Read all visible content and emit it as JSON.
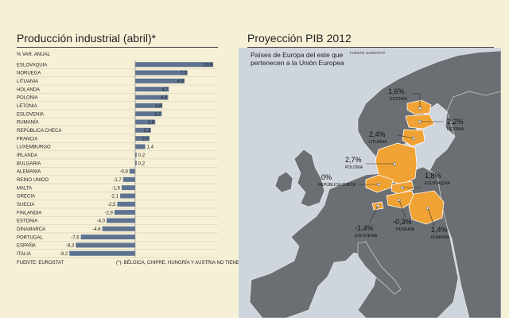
{
  "left": {
    "title": "Producción industrial (abril)*",
    "unit": "% VAR. ANUAL",
    "source": "FUENTE: EUROSTAT",
    "footnote": "(*): BÉLGICA, CHIPRE, HUNGRÍA Y AUSTRIA NO TIENEN DATOS DISPONIBLES"
  },
  "right": {
    "title": "Proyección PIB 2012",
    "subtitle": "Países de Europa del este que pertenecen a la Unión Europea",
    "source": "FUENTE: EUROSTAT"
  },
  "colors": {
    "background": "#f6f0d6",
    "bar": "#5e7392",
    "sea": "#cfd5dc",
    "land": "#6b6e72",
    "highlight": "#f0a334"
  },
  "chart_data": [
    {
      "type": "bar",
      "orientation": "horizontal",
      "title": "Producción industrial (abril)*",
      "xlabel": "% VAR. ANUAL",
      "categories": [
        "ESLOVAQUIA",
        "NORUEGA",
        "LITUANIA",
        "HOLANDA",
        "POLONIA",
        "LETONIA",
        "ESLOVENIA",
        "RUMANÍA",
        "REPÚBLICA CHECA",
        "FRANCIA",
        "LUXEMBURGO",
        "IRLANDA",
        "BULGARIA",
        "ALEMANIA",
        "REINO UNIDO",
        "MALTA",
        "GRECIA",
        "SUECIA",
        "FINLANDIA",
        "ESTONIA",
        "DINAMARCA",
        "PORTUGAL",
        "ESPAÑA",
        "ITALIA"
      ],
      "values": [
        10.9,
        7.3,
        6.9,
        4.7,
        4.6,
        3.8,
        3.7,
        2.8,
        2.2,
        2.0,
        1.4,
        0.2,
        0.2,
        -0.8,
        -1.7,
        -1.9,
        -2.1,
        -2.5,
        -2.9,
        -4.0,
        -4.6,
        -7.6,
        -8.3,
        -9.2
      ],
      "value_labels": [
        "10,9",
        "7,3",
        "6,9",
        "4,7",
        "4,6",
        "3,8",
        "3,7",
        "2,8",
        "2,2",
        "2,0",
        "1,4",
        "0,2",
        "0,2",
        "-0,8",
        "-1,7",
        "-1,9",
        "-2,1",
        "-2,5",
        "-2,9",
        "-4,0",
        "-4,6",
        "-7,6",
        "-8,3",
        "-9,2"
      ],
      "xlim": [
        -9.2,
        10.9
      ]
    },
    {
      "type": "map",
      "title": "Proyección PIB 2012",
      "regions": [
        {
          "name": "ESTONIA",
          "label": "1,6%"
        },
        {
          "name": "LETONIA",
          "label": "2,2%"
        },
        {
          "name": "LITUANIA",
          "label": "2,4%"
        },
        {
          "name": "POLONIA",
          "label": "2,7%"
        },
        {
          "name": "REPÚBLICA CHECA",
          "label": "0%"
        },
        {
          "name": "ESLOVAQUIA",
          "label": "1,8%"
        },
        {
          "name": "ESLOVENIA",
          "label": "-1,4%"
        },
        {
          "name": "HUNGRÍA",
          "label": "-0,3%"
        },
        {
          "name": "RUMANÍA",
          "label": "1,4%"
        }
      ]
    }
  ]
}
